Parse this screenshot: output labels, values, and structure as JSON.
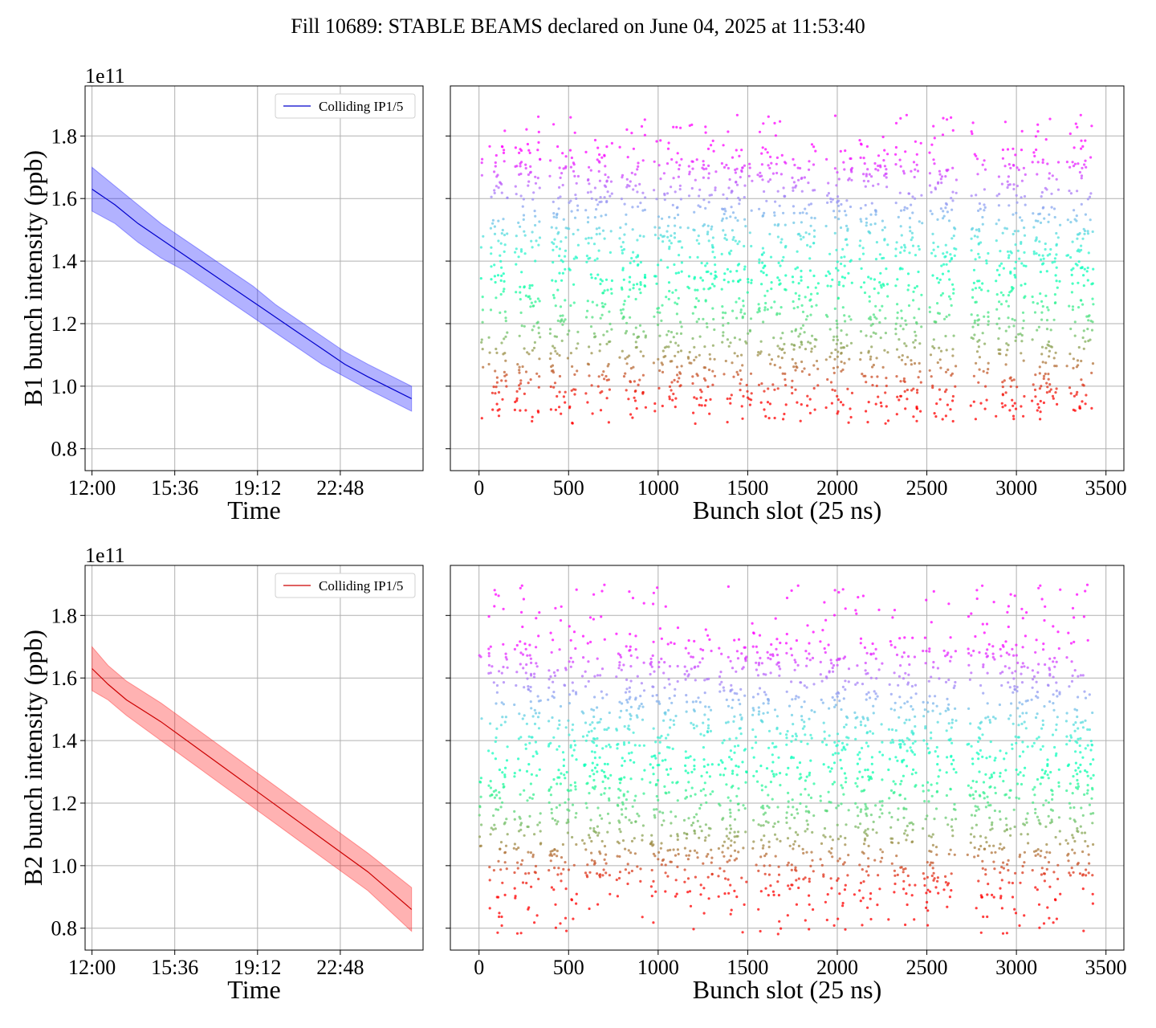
{
  "title": "Fill 10689: STABLE BEAMS declared on June 04, 2025 at 11:53:40",
  "chart_data": [
    {
      "id": "b1-time",
      "type": "line",
      "xlabel": "Time",
      "ylabel": "B1 bunch intensity (ppb)",
      "y_offset_label": "1e11",
      "x_ticks": [
        "12:00",
        "15:36",
        "19:12",
        "22:48"
      ],
      "x_tick_hours": [
        0,
        3.6,
        7.2,
        10.8
      ],
      "xlim_hours": [
        -0.3,
        14.4
      ],
      "y_ticks": [
        "0.8",
        "1.0",
        "1.2",
        "1.4",
        "1.6",
        "1.8"
      ],
      "ylim": [
        0.73,
        1.96
      ],
      "grid": true,
      "legend": "top-right",
      "series": [
        {
          "name": "Colliding IP1/5",
          "color": "#0000cc",
          "band_color": "#0000ff",
          "x_hours": [
            0,
            1,
            2,
            3,
            4,
            5,
            6,
            7,
            8,
            9,
            10,
            11,
            12,
            13.9
          ],
          "mean": [
            1.63,
            1.58,
            1.52,
            1.47,
            1.42,
            1.37,
            1.32,
            1.27,
            1.22,
            1.17,
            1.12,
            1.07,
            1.03,
            0.96
          ],
          "upper": [
            1.7,
            1.64,
            1.58,
            1.52,
            1.47,
            1.42,
            1.37,
            1.32,
            1.26,
            1.21,
            1.16,
            1.11,
            1.07,
            1.0
          ],
          "lower": [
            1.56,
            1.52,
            1.46,
            1.41,
            1.37,
            1.32,
            1.27,
            1.22,
            1.17,
            1.12,
            1.07,
            1.03,
            0.99,
            0.92
          ]
        }
      ]
    },
    {
      "id": "b1-slot",
      "type": "scatter",
      "xlabel": "Bunch slot (25 ns)",
      "ylabel": "",
      "x_ticks": [
        "0",
        "500",
        "1000",
        "1500",
        "2000",
        "2500",
        "3000",
        "3500"
      ],
      "x_tick_values": [
        0,
        500,
        1000,
        1500,
        2000,
        2500,
        3000,
        3500
      ],
      "xlim": [
        -160,
        3600
      ],
      "ylim": [
        0.73,
        1.96
      ],
      "y_tick_values": [
        0.8,
        1.0,
        1.2,
        1.4,
        1.6,
        1.8
      ],
      "grid": true,
      "colormap": "rainbow",
      "trains": [
        [
          10,
          25
        ],
        [
          55,
          160
        ],
        [
          200,
          345
        ],
        [
          395,
          555
        ],
        [
          595,
          745
        ],
        [
          785,
          935
        ],
        [
          975,
          1135
        ],
        [
          1165,
          1325
        ],
        [
          1355,
          1525
        ],
        [
          1555,
          1715
        ],
        [
          1745,
          1895
        ],
        [
          1935,
          2085
        ],
        [
          2125,
          2285
        ],
        [
          2325,
          2475
        ],
        [
          2515,
          2665
        ],
        [
          2745,
          2845
        ],
        [
          2885,
          3055
        ],
        [
          3085,
          3245
        ],
        [
          3280,
          3430
        ]
      ],
      "value_range": [
        0.88,
        1.87
      ],
      "cluster": [
        0.95,
        1.75
      ]
    },
    {
      "id": "b2-time",
      "type": "line",
      "xlabel": "Time",
      "ylabel": "B2 bunch intensity (ppb)",
      "y_offset_label": "1e11",
      "x_ticks": [
        "12:00",
        "15:36",
        "19:12",
        "22:48"
      ],
      "x_tick_hours": [
        0,
        3.6,
        7.2,
        10.8
      ],
      "xlim_hours": [
        -0.3,
        14.4
      ],
      "y_ticks": [
        "0.8",
        "1.0",
        "1.2",
        "1.4",
        "1.6",
        "1.8"
      ],
      "ylim": [
        0.73,
        1.96
      ],
      "grid": true,
      "legend": "top-right",
      "series": [
        {
          "name": "Colliding IP1/5",
          "color": "#cc0000",
          "band_color": "#ff0000",
          "x_hours": [
            0,
            0.7,
            1.5,
            3,
            4.5,
            6,
            7.5,
            9,
            10.5,
            12,
            13.9
          ],
          "mean": [
            1.63,
            1.58,
            1.53,
            1.46,
            1.38,
            1.3,
            1.22,
            1.14,
            1.06,
            0.98,
            0.86
          ],
          "upper": [
            1.7,
            1.64,
            1.59,
            1.52,
            1.44,
            1.36,
            1.28,
            1.2,
            1.12,
            1.04,
            0.93
          ],
          "lower": [
            1.56,
            1.53,
            1.48,
            1.4,
            1.32,
            1.24,
            1.16,
            1.08,
            1.0,
            0.92,
            0.79
          ]
        }
      ]
    },
    {
      "id": "b2-slot",
      "type": "scatter",
      "xlabel": "Bunch slot (25 ns)",
      "ylabel": "",
      "x_ticks": [
        "0",
        "500",
        "1000",
        "1500",
        "2000",
        "2500",
        "3000",
        "3500"
      ],
      "x_tick_values": [
        0,
        500,
        1000,
        1500,
        2000,
        2500,
        3000,
        3500
      ],
      "xlim": [
        -160,
        3600
      ],
      "ylim": [
        0.73,
        1.96
      ],
      "y_tick_values": [
        0.8,
        1.0,
        1.2,
        1.4,
        1.6,
        1.8
      ],
      "grid": true,
      "colormap": "rainbow",
      "trains": [
        [
          0,
          15
        ],
        [
          50,
          160
        ],
        [
          195,
          345
        ],
        [
          385,
          545
        ],
        [
          575,
          735
        ],
        [
          765,
          925
        ],
        [
          955,
          1115
        ],
        [
          1145,
          1305
        ],
        [
          1335,
          1495
        ],
        [
          1525,
          1685
        ],
        [
          1715,
          1875
        ],
        [
          1905,
          2065
        ],
        [
          2095,
          2255
        ],
        [
          2285,
          2445
        ],
        [
          2475,
          2575
        ],
        [
          2595,
          2665
        ],
        [
          2725,
          2885
        ],
        [
          2905,
          3065
        ],
        [
          3085,
          3245
        ],
        [
          3275,
          3430
        ]
      ],
      "value_range": [
        0.78,
        1.9
      ],
      "cluster": [
        0.92,
        1.72
      ]
    }
  ]
}
